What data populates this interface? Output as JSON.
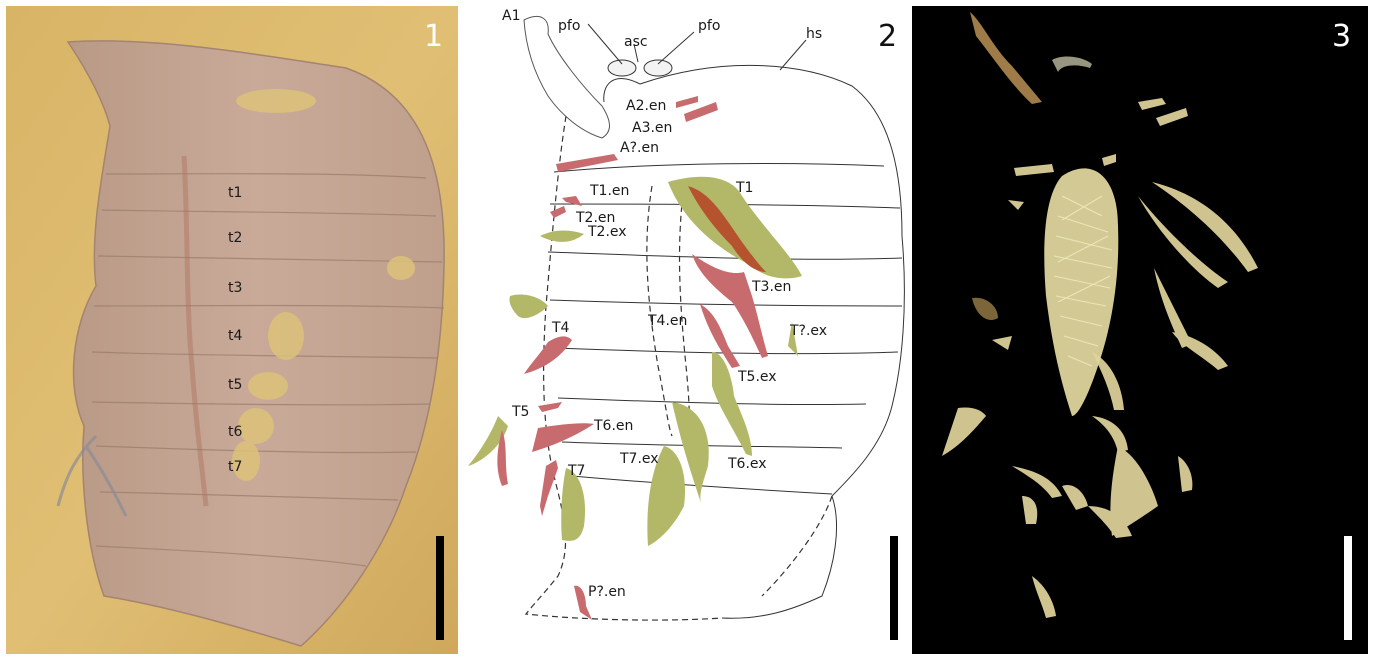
{
  "panels": [
    {
      "number": "1",
      "segment_labels": [
        "t1",
        "t2",
        "t3",
        "t4",
        "t5",
        "t6",
        "t7"
      ]
    },
    {
      "number": "2",
      "labels": {
        "a1": "A1",
        "pfo_left": "pfo",
        "asc": "asc",
        "pfo_right": "pfo",
        "hs": "hs",
        "a2en": "A2.en",
        "a3en": "A3.en",
        "aqen": "A?.en",
        "t1en": "T1.en",
        "t1": "T1",
        "t2en": "T2.en",
        "t2ex": "T2.ex",
        "t3en": "T3.en",
        "t4": "T4",
        "t4en": "T4.en",
        "tqex": "T?.ex",
        "t5ex": "T5.ex",
        "t5": "T5",
        "t6en": "T6.en",
        "t7ex": "T7.ex",
        "t6ex": "T6.ex",
        "t7": "T7",
        "pqen": "P?.en"
      }
    },
    {
      "number": "3"
    }
  ],
  "colors": {
    "matrix": "#d9b56a",
    "fossil": "#c7a38c",
    "endopod": "#c76b6e",
    "exopod": "#b3b868",
    "gut": "#b5532f",
    "microct": "#e8dfa0"
  }
}
